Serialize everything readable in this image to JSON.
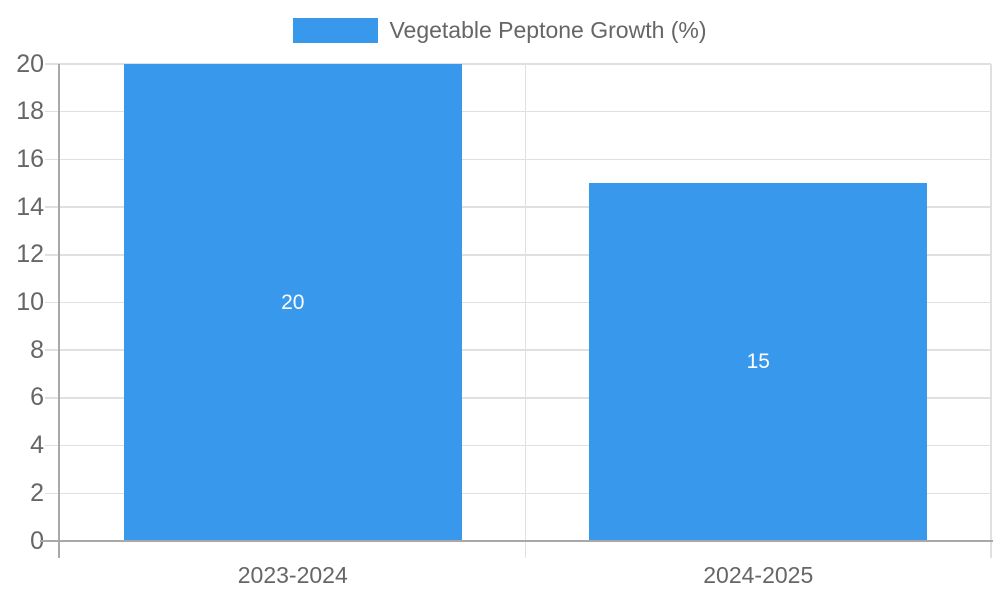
{
  "legend": {
    "label": "Vegetable Peptone Growth (%)"
  },
  "chart_data": {
    "type": "bar",
    "title": "",
    "xlabel": "",
    "ylabel": "",
    "categories": [
      "2023-2024",
      "2024-2025"
    ],
    "series": [
      {
        "name": "Vegetable Peptone Growth (%)",
        "values": [
          20,
          15
        ]
      }
    ],
    "data_labels": [
      "20",
      "15"
    ],
    "ylim": [
      0,
      20
    ],
    "ytick_step": 2,
    "yticks": [
      0,
      2,
      4,
      6,
      8,
      10,
      12,
      14,
      16,
      18,
      20
    ],
    "grid": true,
    "legend_position": "top-center",
    "colors": {
      "bar": "#3899EC",
      "grid": "#e0e0e0",
      "axis": "#a8a8a8",
      "tick_label": "#666666",
      "legend_label": "#666666",
      "data_label": "#ffffff",
      "background": "#ffffff"
    }
  }
}
